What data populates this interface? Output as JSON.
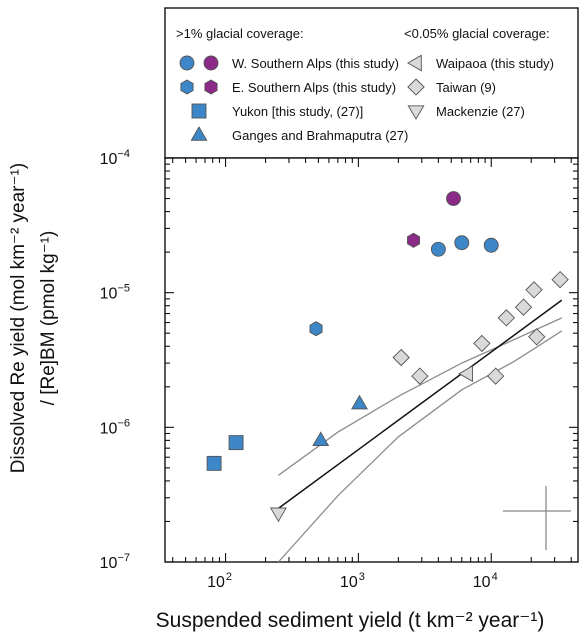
{
  "chart_data": {
    "type": "scatter",
    "title": "",
    "xlabel": "Suspended sediment yield (t km⁻² year⁻¹)",
    "ylabel_line1": "Dissolved Re yield (mol km⁻² year⁻¹)",
    "ylabel_line2": "/ [Re]BM (pmol kg⁻¹)",
    "x_scale": "log",
    "y_scale": "log",
    "xlim": [
      35,
      45000
    ],
    "ylim": [
      1e-07,
      0.0001
    ],
    "x_ticks": [
      {
        "value": 100,
        "label": "10",
        "exp": "2"
      },
      {
        "value": 1000,
        "label": "10",
        "exp": "3"
      },
      {
        "value": 10000,
        "label": "10",
        "exp": "4"
      }
    ],
    "y_ticks": [
      {
        "value": 1e-07,
        "label": "10",
        "exp": "−7"
      },
      {
        "value": 1e-06,
        "label": "10",
        "exp": "−6"
      },
      {
        "value": 1e-05,
        "label": "10",
        "exp": "−5"
      },
      {
        "value": 0.0001,
        "label": "10",
        "exp": "−4"
      }
    ],
    "legend": {
      "placement": "top",
      "group_high": "&gt;1% glacial coverage:",
      "group_low": "&lt;0.05% glacial coverage:"
    },
    "series": [
      {
        "name": "W. Southern Alps (this study)",
        "group": "high",
        "marker": "circle-pair",
        "colors": [
          "#3d87c8",
          "#8b2a87"
        ],
        "points": [
          [
            4000,
            2.1e-05
          ],
          [
            6000,
            2.35e-05
          ],
          [
            10000,
            2.25e-05
          ],
          [
            5200,
            5e-05
          ]
        ],
        "point_colors": [
          "#3d87c8",
          "#3d87c8",
          "#3d87c8",
          "#8b2a87"
        ]
      },
      {
        "name": "E. Southern Alps (this study)",
        "group": "high",
        "marker": "hexagon-pair",
        "colors": [
          "#3d87c8",
          "#8b2a87"
        ],
        "points": [
          [
            480,
            5.4e-06
          ],
          [
            2600,
            2.45e-05
          ]
        ],
        "point_colors": [
          "#3d87c8",
          "#8b2a87"
        ]
      },
      {
        "name": "Yukon [this study, (27)]",
        "group": "high",
        "marker": "square",
        "colors": [
          "#3d87c8"
        ],
        "points": [
          [
            82,
            5.4e-07
          ],
          [
            120,
            7.7e-07
          ]
        ]
      },
      {
        "name": "Ganges and Brahmaputra (27)",
        "group": "high",
        "marker": "triangle-up",
        "colors": [
          "#3d87c8"
        ],
        "points": [
          [
            520,
            8e-07
          ],
          [
            1020,
            1.5e-06
          ]
        ]
      },
      {
        "name": "Waipaoa (this study)",
        "group": "low",
        "marker": "triangle-left",
        "colors": [
          "#d9d9d9"
        ],
        "points": [
          [
            6600,
            2.5e-06
          ]
        ]
      },
      {
        "name": "Taiwan (9)",
        "group": "low",
        "marker": "diamond",
        "colors": [
          "#d9d9d9"
        ],
        "points": [
          [
            2100,
            3.3e-06
          ],
          [
            2900,
            2.4e-06
          ],
          [
            8500,
            4.2e-06
          ],
          [
            10800,
            2.4e-06
          ],
          [
            13000,
            6.5e-06
          ],
          [
            17500,
            7.8e-06
          ],
          [
            21000,
            1.05e-05
          ],
          [
            22000,
            4.7e-06
          ],
          [
            33000,
            1.25e-05
          ]
        ]
      },
      {
        "name": "Mackenzie (27)",
        "group": "low",
        "marker": "triangle-down",
        "colors": [
          "#d9d9d9"
        ],
        "points": [
          [
            250,
            2.3e-07
          ]
        ]
      }
    ],
    "fit_line": {
      "points": [
        [
          250,
          2.5e-07
        ],
        [
          34000,
          8.8e-06
        ]
      ]
    },
    "confidence_upper": {
      "points": [
        [
          250,
          4.4e-07
        ],
        [
          700,
          9.2e-07
        ],
        [
          2000,
          1.7e-06
        ],
        [
          6000,
          3e-06
        ],
        [
          15000,
          4.5e-06
        ],
        [
          34000,
          6.5e-06
        ]
      ]
    },
    "confidence_lower": {
      "points": [
        [
          250,
          1e-07
        ],
        [
          700,
          3.1e-07
        ],
        [
          2000,
          8.5e-07
        ],
        [
          6000,
          1.9e-06
        ],
        [
          15000,
          3.1e-06
        ],
        [
          34000,
          5.2e-06
        ]
      ]
    },
    "error_cross": {
      "label": ""
    }
  }
}
